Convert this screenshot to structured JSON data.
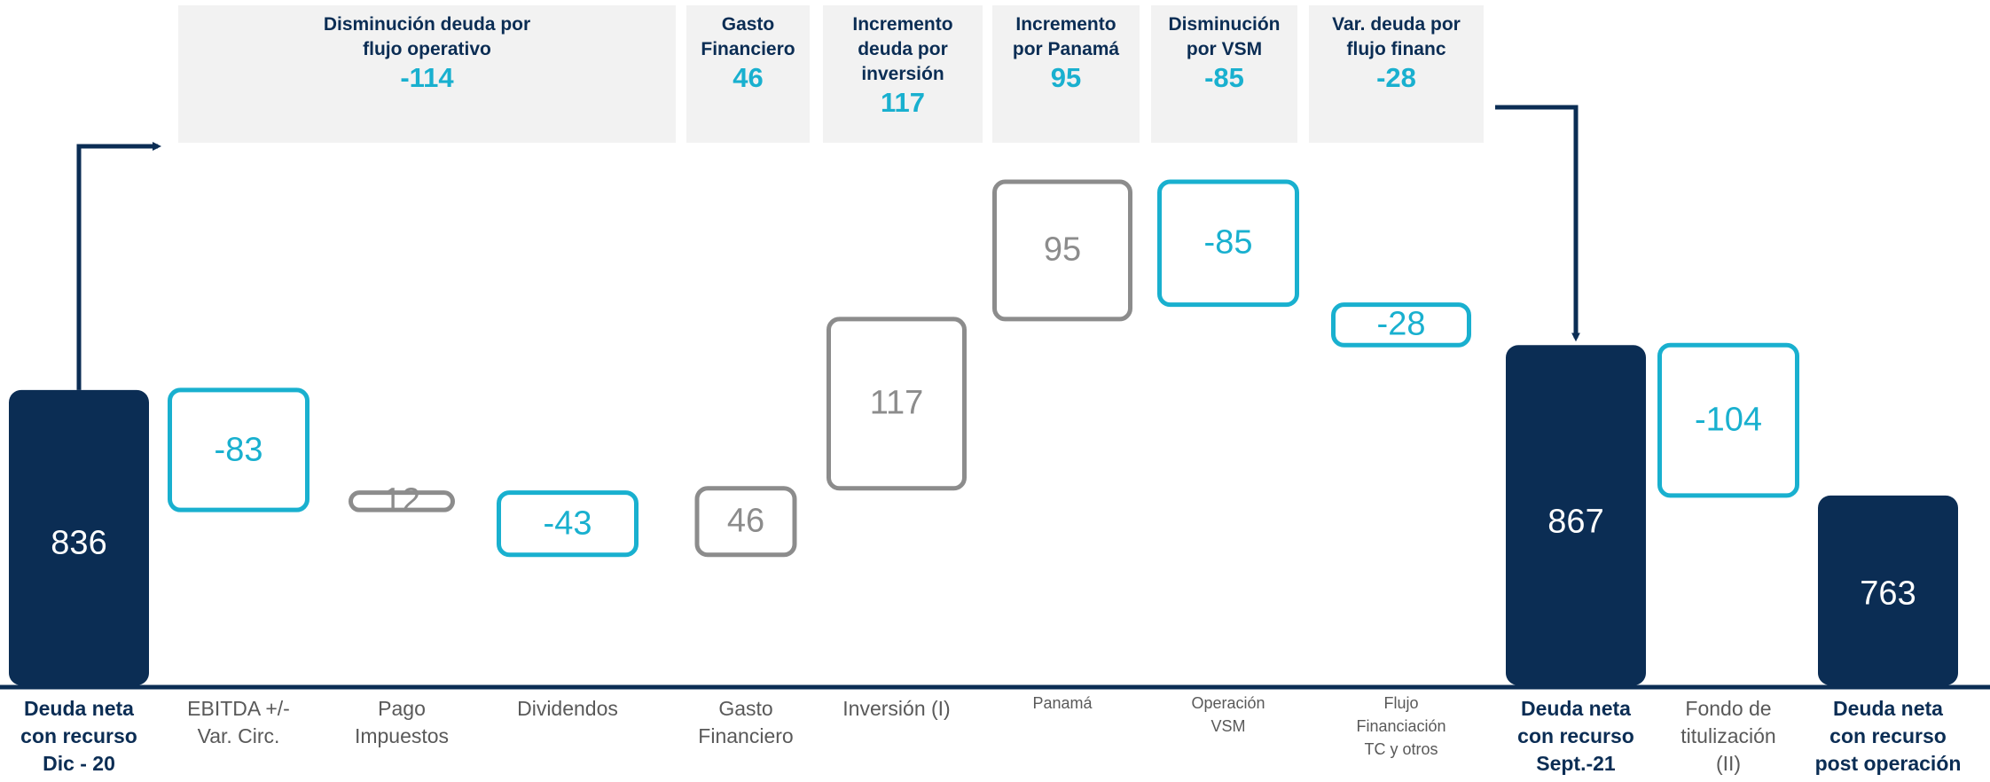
{
  "chart_data": {
    "type": "waterfall",
    "categories": [
      "Deuda neta\ncon recurso\nDic - 20",
      "EBITDA +/-\nVar. Circ.",
      "Pago\nImpuestos",
      "Dividendos",
      "Gasto\nFinanciero",
      "Inversión (I)",
      "Panamá",
      "Operación\nVSM",
      "Flujo\nFinanciación\nTC y otros",
      "Deuda neta\ncon recurso\nSept.-21",
      "Fondo de\ntitulización\n(II)",
      "Deuda neta\ncon recurso\npost operación"
    ],
    "values": [
      836,
      -83,
      12,
      -43,
      46,
      117,
      95,
      -85,
      -28,
      867,
      -104,
      763
    ],
    "totals": [
      0,
      9,
      11
    ],
    "colors": {
      "total": "#0b2d54",
      "decrease": "#19b0cf",
      "increase": "#8c8c8c"
    },
    "groups": [
      {
        "label": "Disminución deuda por\nflujo operativo",
        "value": -114
      },
      {
        "label": "Gasto\nFinanciero",
        "value": 46
      },
      {
        "label": "Incremento\ndeuda por\ninversión",
        "value": 117
      },
      {
        "label": "Incremento\npor Panamá",
        "value": 95
      },
      {
        "label": "Disminución\npor VSM",
        "value": -85
      },
      {
        "label": "Var. deuda por\nflujo financ",
        "value": -28
      }
    ]
  }
}
